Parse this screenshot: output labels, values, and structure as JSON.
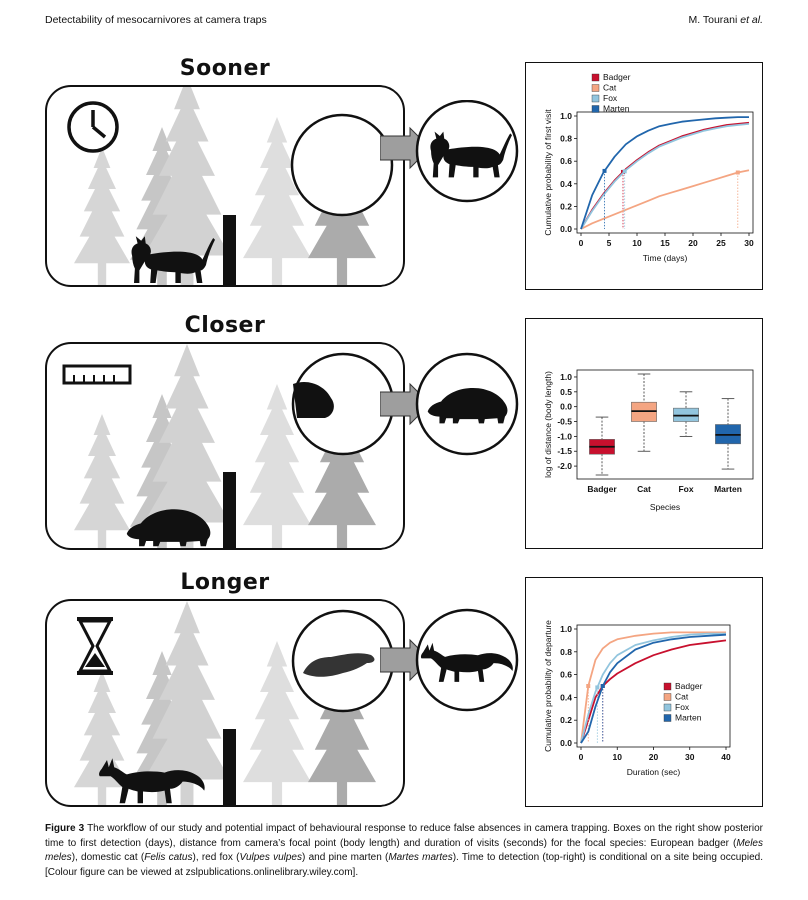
{
  "header": {
    "left": "Detectability of mesocarnivores at camera traps",
    "right_author": "M. Tourani ",
    "right_etal": "et al."
  },
  "panels": [
    {
      "title": "Sooner",
      "icon": "clock-icon"
    },
    {
      "title": "Closer",
      "icon": "ruler-icon"
    },
    {
      "title": "Longer",
      "icon": "hourglass-icon"
    }
  ],
  "colors": {
    "badger": "#c8102e",
    "cat": "#f4a582",
    "fox": "#92c5de",
    "marten": "#2166ac",
    "tree_light": "#d6d6d6",
    "tree_mid": "#bdbdbd",
    "tree_dark": "#a9a9a9"
  },
  "chart_data": [
    {
      "type": "line",
      "xlabel": "Time (days)",
      "ylabel": "Cumulative probability of first visit",
      "xlim": [
        0,
        30
      ],
      "ylim": [
        0,
        1
      ],
      "xticks": [
        0,
        5,
        10,
        15,
        20,
        25,
        30
      ],
      "yticks": [
        0.0,
        0.2,
        0.4,
        0.6,
        0.8,
        1.0
      ],
      "legend_position": "top-left",
      "series": [
        {
          "name": "Badger",
          "color": "#c8102e",
          "x": [
            0,
            2,
            4,
            6,
            8,
            10,
            12,
            14,
            16,
            18,
            20,
            22,
            24,
            26,
            28,
            30
          ],
          "y": [
            0,
            0.17,
            0.31,
            0.43,
            0.53,
            0.61,
            0.68,
            0.74,
            0.78,
            0.82,
            0.85,
            0.88,
            0.9,
            0.92,
            0.93,
            0.94
          ],
          "median": 7.5
        },
        {
          "name": "Cat",
          "color": "#f4a582",
          "x": [
            0,
            2,
            4,
            6,
            8,
            10,
            12,
            14,
            16,
            18,
            20,
            22,
            24,
            26,
            28,
            30
          ],
          "y": [
            0,
            0.05,
            0.09,
            0.13,
            0.17,
            0.21,
            0.25,
            0.29,
            0.32,
            0.35,
            0.38,
            0.41,
            0.44,
            0.47,
            0.5,
            0.52
          ],
          "median": 28
        },
        {
          "name": "Fox",
          "color": "#92c5de",
          "x": [
            0,
            2,
            4,
            6,
            8,
            10,
            12,
            14,
            16,
            18,
            20,
            22,
            24,
            26,
            28,
            30
          ],
          "y": [
            0,
            0.16,
            0.3,
            0.42,
            0.52,
            0.6,
            0.67,
            0.73,
            0.77,
            0.81,
            0.84,
            0.87,
            0.89,
            0.91,
            0.92,
            0.93
          ],
          "median": 7.8
        },
        {
          "name": "Marten",
          "color": "#2166ac",
          "x": [
            0,
            2,
            4,
            6,
            8,
            10,
            12,
            14,
            16,
            18,
            20,
            22,
            24,
            26,
            28,
            30
          ],
          "y": [
            0,
            0.3,
            0.5,
            0.64,
            0.75,
            0.82,
            0.87,
            0.91,
            0.93,
            0.95,
            0.96,
            0.97,
            0.98,
            0.985,
            0.99,
            0.99
          ],
          "median": 4.2
        }
      ]
    },
    {
      "type": "box",
      "xlabel": "Species",
      "ylabel": "log of distance (body length)",
      "ylim": [
        -2.3,
        1.1
      ],
      "yticks": [
        1.0,
        0.5,
        0.0,
        -0.5,
        -1.0,
        -1.5,
        -2.0
      ],
      "categories": [
        "Badger",
        "Cat",
        "Fox",
        "Marten"
      ],
      "series": [
        {
          "name": "Badger",
          "color": "#c8102e",
          "min": -2.3,
          "q1": -1.6,
          "median": -1.35,
          "q3": -1.1,
          "max": -0.35
        },
        {
          "name": "Cat",
          "color": "#f4a582",
          "min": -1.5,
          "q1": -0.5,
          "median": -0.15,
          "q3": 0.15,
          "max": 1.1
        },
        {
          "name": "Fox",
          "color": "#92c5de",
          "min": -1.0,
          "q1": -0.5,
          "median": -0.3,
          "q3": -0.05,
          "max": 0.5
        },
        {
          "name": "Marten",
          "color": "#2166ac",
          "min": -2.1,
          "q1": -1.25,
          "median": -0.95,
          "q3": -0.6,
          "max": 0.27
        }
      ]
    },
    {
      "type": "line",
      "xlabel": "Duration (sec)",
      "ylabel": "Cumulative  probability of departure",
      "xlim": [
        0,
        40
      ],
      "ylim": [
        0,
        1
      ],
      "xticks": [
        0,
        10,
        20,
        30,
        40
      ],
      "yticks": [
        0.0,
        0.2,
        0.4,
        0.6,
        0.8,
        1.0
      ],
      "legend_position": "bottom-right",
      "series": [
        {
          "name": "Badger",
          "color": "#c8102e",
          "x": [
            0,
            2,
            4,
            6,
            8,
            10,
            15,
            20,
            25,
            30,
            35,
            40
          ],
          "y": [
            0,
            0.2,
            0.4,
            0.5,
            0.56,
            0.61,
            0.7,
            0.77,
            0.82,
            0.86,
            0.88,
            0.9
          ],
          "median": 6
        },
        {
          "name": "Cat",
          "color": "#f4a582",
          "x": [
            0,
            2,
            4,
            6,
            8,
            10,
            15,
            20,
            25,
            30,
            35,
            40
          ],
          "y": [
            0,
            0.5,
            0.73,
            0.83,
            0.88,
            0.91,
            0.94,
            0.96,
            0.97,
            0.97,
            0.97,
            0.97
          ],
          "median": 2
        },
        {
          "name": "Fox",
          "color": "#92c5de",
          "x": [
            0,
            2,
            4,
            6,
            8,
            10,
            15,
            20,
            25,
            30,
            35,
            40
          ],
          "y": [
            0,
            0.25,
            0.45,
            0.6,
            0.7,
            0.77,
            0.86,
            0.9,
            0.93,
            0.95,
            0.96,
            0.96
          ],
          "median": 4.5
        },
        {
          "name": "Marten",
          "color": "#2166ac",
          "x": [
            0,
            2,
            4,
            6,
            8,
            10,
            15,
            20,
            25,
            30,
            35,
            40
          ],
          "y": [
            0,
            0.1,
            0.32,
            0.5,
            0.62,
            0.7,
            0.82,
            0.88,
            0.91,
            0.93,
            0.94,
            0.95
          ],
          "median": 6
        }
      ]
    }
  ],
  "caption": {
    "label": "Figure 3",
    "s1": " The workflow of our study and potential impact of behavioural response to reduce false absences in camera trapping. Boxes on the right show posterior time to first detection (days), distance from camera’s focal point (body length) and duration of visits (seconds) for the focal species: European badger (",
    "sp1": "Meles meles",
    "s2": "), domestic cat (",
    "sp2": "Felis catus",
    "s3": "), red fox (",
    "sp3": "Vulpes vulpes",
    "s4": ") and pine marten (",
    "sp4": "Martes martes",
    "s5": "). Time to detection (top-right) is conditional on a site being occupied. [Colour figure can be viewed at zslpublications.onlinelibrary.wiley.com]."
  }
}
